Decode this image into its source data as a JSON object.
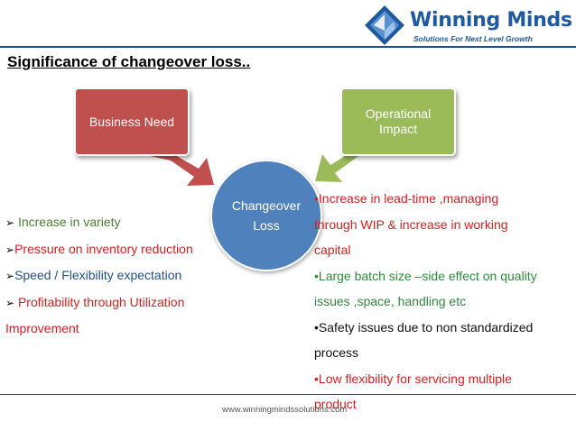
{
  "logo": {
    "name": "Winning Minds",
    "tagline": "Solutions For Next Level Growth"
  },
  "title": "Significance of changeover loss..",
  "boxes": {
    "business_need": "Business Need",
    "operational_impact": "Operational Impact"
  },
  "center": {
    "line1": "Changeover",
    "line2": "Loss"
  },
  "left_list": [
    {
      "text": " Increase in variety",
      "color": "#4a7f2f"
    },
    {
      "text": "Pressure on inventory reduction",
      "color": "#d62020"
    },
    {
      "text": "Speed  / Flexibility expectation",
      "color": "#1f4e8c"
    },
    {
      "text": " Profitability through Utilization Improvement",
      "color": "#d62020"
    }
  ],
  "right_list": [
    {
      "text": "Increase in lead-time ,managing through WIP & increase in working capital",
      "color": "#d62020"
    },
    {
      "text": "Large batch size –side effect on quality issues ,space, handling etc",
      "color": "#2e8b3e"
    },
    {
      "text": "Safety issues due to non standardized process",
      "color": "#111111"
    },
    {
      "text": "Low flexibility for servicing multiple product",
      "color": "#d62020"
    }
  ],
  "footer": "www.winningmindssolutions.com",
  "colors": {
    "rule": "#1f4e8c",
    "business_need_box": "#c0504d",
    "operational_impact_box": "#9bbb59",
    "center_circle": "#4f81bd"
  }
}
